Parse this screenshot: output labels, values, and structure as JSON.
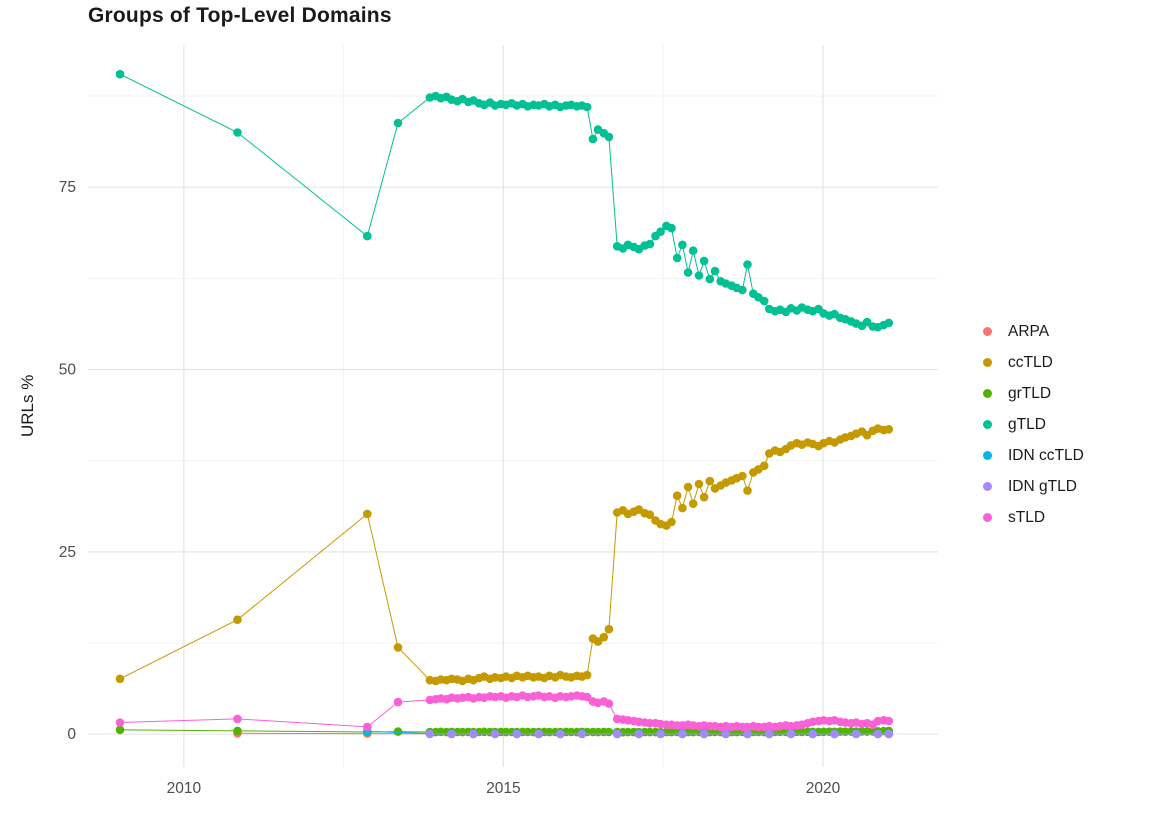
{
  "chart_data": {
    "type": "scatter",
    "title": "Groups of Top-Level Domains",
    "xlabel": "",
    "ylabel": "URLs %",
    "x_domain": [
      2008.5,
      2021.8
    ],
    "y_domain": [
      -4.5,
      94.5
    ],
    "x_ticks": [
      "2010",
      "2015",
      "2020"
    ],
    "x_tick_values": [
      2010,
      2015,
      2020
    ],
    "y_ticks": [
      "0",
      "25",
      "50",
      "75"
    ],
    "y_tick_values": [
      0,
      25,
      50,
      75
    ],
    "x_minor": [
      2012.5,
      2017.5
    ],
    "y_minor": [
      12.5,
      37.5,
      62.5,
      87.5
    ],
    "grid": true,
    "legend_position": "right",
    "colors": {
      "background": "#FFFFFF",
      "grid_major": "#E5E5E5",
      "grid_minor": "#F2F2F2",
      "tick_label": "#4D4D4D",
      "text": "#1A1A1A"
    },
    "x_common": [
      2009.0,
      2010.84,
      2012.87,
      2013.35,
      2013.85,
      2013.94,
      2014.02,
      2014.11,
      2014.19,
      2014.28,
      2014.36,
      2014.45,
      2014.53,
      2014.62,
      2014.7,
      2014.79,
      2014.87,
      2014.96,
      2015.04,
      2015.13,
      2015.21,
      2015.3,
      2015.38,
      2015.47,
      2015.55,
      2015.64,
      2015.72,
      2015.81,
      2015.89,
      2015.98,
      2016.06,
      2016.15,
      2016.23,
      2016.31,
      2016.4,
      2016.48,
      2016.57,
      2016.65,
      2016.78,
      2016.87,
      2016.95,
      2017.04,
      2017.12,
      2017.21,
      2017.29,
      2017.38,
      2017.46,
      2017.55,
      2017.63,
      2017.72,
      2017.8,
      2017.89,
      2017.97,
      2018.06,
      2018.14,
      2018.23,
      2018.31,
      2018.4,
      2018.48,
      2018.57,
      2018.65,
      2018.74,
      2018.82,
      2018.91,
      2018.99,
      2019.08,
      2019.16,
      2019.25,
      2019.33,
      2019.42,
      2019.5,
      2019.59,
      2019.67,
      2019.76,
      2019.84,
      2019.93,
      2020.01,
      2020.1,
      2020.18,
      2020.27,
      2020.35,
      2020.44,
      2020.52,
      2020.61,
      2020.69,
      2020.78,
      2020.86,
      2020.95,
      2021.03
    ],
    "series": [
      {
        "label": "ARPA",
        "color": "#F8766D",
        "x": [
          2010.84,
          2012.87,
          2013.85,
          2014.19,
          2014.53,
          2014.87,
          2015.21,
          2015.55,
          2015.89,
          2016.23,
          2016.78,
          2017.12,
          2017.46,
          2017.8,
          2018.14,
          2018.48,
          2018.82,
          2019.16,
          2019.5,
          2019.84,
          2020.18,
          2020.52,
          2020.86,
          2021.03
        ],
        "y": [
          0.12,
          0.08,
          0.05,
          0.05,
          0.04,
          0.05,
          0.04,
          0.05,
          0.04,
          0.05,
          0.04,
          0.04,
          0.05,
          0.04,
          0.04,
          0.05,
          0.04,
          0.04,
          0.05,
          0.04,
          0.04,
          0.05,
          0.04,
          0.04
        ]
      },
      {
        "label": "ccTLD",
        "color": "#C49A00",
        "x_ref": "x_common",
        "y": [
          7.6,
          15.7,
          30.2,
          11.9,
          7.4,
          7.3,
          7.5,
          7.4,
          7.6,
          7.5,
          7.3,
          7.6,
          7.4,
          7.7,
          7.9,
          7.6,
          7.8,
          7.7,
          7.9,
          7.7,
          8.0,
          7.8,
          8.0,
          7.8,
          7.9,
          7.7,
          8.0,
          7.8,
          8.1,
          7.9,
          7.8,
          8.0,
          7.9,
          8.1,
          13.1,
          12.7,
          13.3,
          14.4,
          30.4,
          30.7,
          30.2,
          30.5,
          30.8,
          30.3,
          30.1,
          29.3,
          28.8,
          28.6,
          29.1,
          32.7,
          31.0,
          33.9,
          31.6,
          34.3,
          32.5,
          34.7,
          33.7,
          34.1,
          34.5,
          34.8,
          35.1,
          35.4,
          33.4,
          35.9,
          36.3,
          36.8,
          38.5,
          38.9,
          38.7,
          39.1,
          39.6,
          39.9,
          39.7,
          40.0,
          39.8,
          39.5,
          39.9,
          40.2,
          40.0,
          40.4,
          40.7,
          40.9,
          41.2,
          41.5,
          41.0,
          41.6,
          41.9,
          41.7,
          41.8
        ]
      },
      {
        "label": "grTLD",
        "color": "#53B400",
        "x_ref": "x_common",
        "y": [
          0.6,
          0.45,
          0.3,
          0.35,
          0.3,
          0.28,
          0.32,
          0.29,
          0.31,
          0.3,
          0.28,
          0.31,
          0.29,
          0.3,
          0.32,
          0.29,
          0.3,
          0.31,
          0.28,
          0.3,
          0.29,
          0.31,
          0.3,
          0.28,
          0.3,
          0.31,
          0.29,
          0.3,
          0.28,
          0.31,
          0.3,
          0.29,
          0.31,
          0.3,
          0.3,
          0.29,
          0.31,
          0.3,
          0.28,
          0.27,
          0.29,
          0.28,
          0.27,
          0.28,
          0.29,
          0.28,
          0.27,
          0.28,
          0.29,
          0.3,
          0.28,
          0.29,
          0.28,
          0.3,
          0.29,
          0.28,
          0.3,
          0.29,
          0.3,
          0.28,
          0.29,
          0.3,
          0.29,
          0.31,
          0.3,
          0.29,
          0.31,
          0.3,
          0.32,
          0.31,
          0.3,
          0.32,
          0.31,
          0.33,
          0.32,
          0.31,
          0.33,
          0.34,
          0.33,
          0.35,
          0.34,
          0.36,
          0.35,
          0.37,
          0.36,
          0.38,
          0.4,
          0.42,
          0.45
        ]
      },
      {
        "label": "gTLD",
        "color": "#00C094",
        "x_ref": "x_common",
        "y": [
          90.5,
          82.5,
          68.3,
          83.8,
          87.3,
          87.5,
          87.2,
          87.4,
          87.0,
          86.8,
          87.1,
          86.7,
          86.9,
          86.5,
          86.3,
          86.6,
          86.2,
          86.4,
          86.3,
          86.5,
          86.2,
          86.4,
          86.1,
          86.3,
          86.2,
          86.4,
          86.1,
          86.3,
          86.0,
          86.2,
          86.3,
          86.1,
          86.2,
          86.0,
          81.6,
          82.9,
          82.4,
          81.9,
          66.9,
          66.6,
          67.1,
          66.8,
          66.5,
          67.0,
          67.2,
          68.3,
          68.9,
          69.7,
          69.4,
          65.3,
          67.1,
          63.3,
          66.3,
          62.9,
          64.9,
          62.4,
          63.5,
          62.1,
          61.8,
          61.5,
          61.2,
          60.9,
          64.4,
          60.4,
          59.9,
          59.4,
          58.3,
          58.0,
          58.2,
          57.9,
          58.4,
          58.1,
          58.5,
          58.2,
          58.0,
          58.3,
          57.7,
          57.4,
          57.6,
          57.1,
          56.9,
          56.6,
          56.3,
          56.0,
          56.5,
          55.9,
          55.8,
          56.1,
          56.4
        ]
      },
      {
        "label": "IDN ccTLD",
        "color": "#00B6EB",
        "x": [
          2012.87,
          2013.85,
          2014.19,
          2014.53,
          2014.87,
          2015.21,
          2015.55,
          2015.89,
          2016.23,
          2016.78,
          2017.12,
          2017.46,
          2017.8,
          2018.14,
          2018.48,
          2018.82,
          2019.16,
          2019.5,
          2019.84,
          2020.18,
          2020.52,
          2020.86,
          2021.03
        ],
        "y": [
          0.38,
          0.1,
          0.08,
          0.08,
          0.07,
          0.08,
          0.07,
          0.07,
          0.08,
          0.06,
          0.06,
          0.07,
          0.06,
          0.06,
          0.07,
          0.06,
          0.06,
          0.07,
          0.06,
          0.06,
          0.07,
          0.06,
          0.07
        ]
      },
      {
        "label": "IDN gTLD",
        "color": "#A58AFF",
        "x": [
          2013.85,
          2014.19,
          2014.53,
          2014.87,
          2015.21,
          2015.55,
          2015.89,
          2016.23,
          2016.78,
          2017.12,
          2017.46,
          2017.8,
          2018.14,
          2018.48,
          2018.82,
          2019.16,
          2019.5,
          2019.84,
          2020.18,
          2020.52,
          2020.86,
          2021.03
        ],
        "y": [
          0.02,
          0.02,
          0.02,
          0.02,
          0.02,
          0.02,
          0.02,
          0.02,
          0.02,
          0.02,
          0.02,
          0.02,
          0.02,
          0.02,
          0.02,
          0.02,
          0.02,
          0.02,
          0.02,
          0.02,
          0.02,
          0.02
        ]
      },
      {
        "label": "sTLD",
        "color": "#FB61D7",
        "x_ref": "x_common",
        "y": [
          1.6,
          2.1,
          1.0,
          4.4,
          4.7,
          4.8,
          4.9,
          4.8,
          5.0,
          4.9,
          5.0,
          5.1,
          4.9,
          5.1,
          5.0,
          5.2,
          5.1,
          5.2,
          5.0,
          5.2,
          5.1,
          5.3,
          5.1,
          5.2,
          5.3,
          5.1,
          5.2,
          5.0,
          5.2,
          5.1,
          5.2,
          5.3,
          5.2,
          5.1,
          4.5,
          4.3,
          4.5,
          4.2,
          2.1,
          2.0,
          1.9,
          1.8,
          1.7,
          1.6,
          1.5,
          1.5,
          1.4,
          1.3,
          1.3,
          1.2,
          1.2,
          1.3,
          1.2,
          1.1,
          1.2,
          1.1,
          1.1,
          1.0,
          1.1,
          1.0,
          1.1,
          1.0,
          1.0,
          1.1,
          1.0,
          1.0,
          1.1,
          1.0,
          1.1,
          1.2,
          1.1,
          1.2,
          1.3,
          1.5,
          1.7,
          1.8,
          1.9,
          1.8,
          1.9,
          1.7,
          1.6,
          1.5,
          1.6,
          1.4,
          1.5,
          1.3,
          1.8,
          1.9,
          1.8
        ]
      }
    ]
  }
}
